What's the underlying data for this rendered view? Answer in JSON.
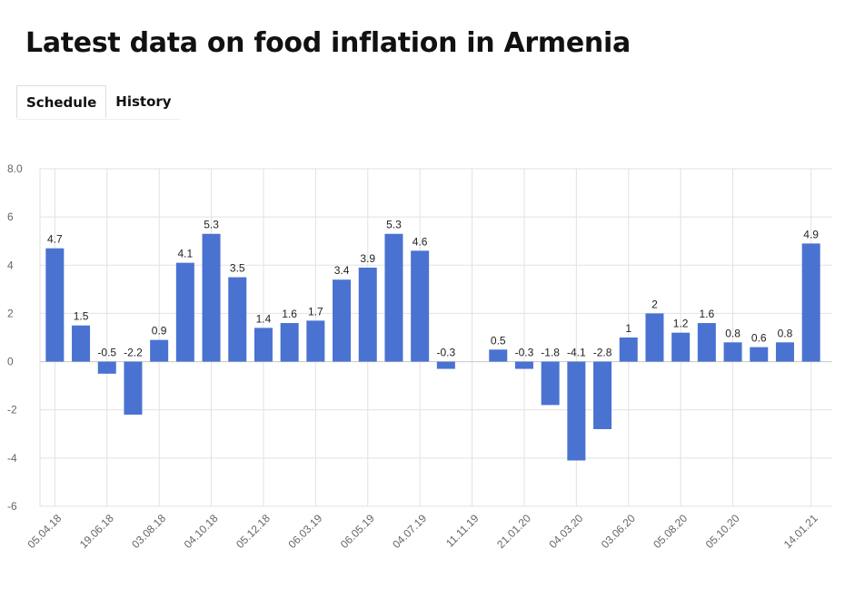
{
  "page": {
    "title": "Latest data on food inflation in Armenia",
    "tabs": [
      {
        "label": "Schedule",
        "active": true
      },
      {
        "label": "History",
        "active": false
      }
    ]
  },
  "colors": {
    "bar": "#4a72d1",
    "grid": "#e2e2e2",
    "axis_text": "#666666"
  },
  "chart_data": {
    "type": "bar",
    "title": "",
    "xlabel": "",
    "ylabel": "",
    "ylim": [
      -6,
      8
    ],
    "yticks": [
      "8.0",
      "6",
      "4",
      "2",
      "0",
      "-2",
      "-4",
      "-6"
    ],
    "grid": true,
    "values": [
      4.7,
      1.5,
      -0.5,
      -2.2,
      0.9,
      4.1,
      5.3,
      3.5,
      1.4,
      1.6,
      1.7,
      3.4,
      3.9,
      5.3,
      4.6,
      -0.3,
      null,
      0.5,
      -0.3,
      -1.8,
      -4.1,
      -2.8,
      1,
      2,
      1.2,
      1.6,
      0.8,
      0.6,
      0.8,
      4.9
    ],
    "value_labels": [
      "4.7",
      "1.5",
      "-0.5",
      "-2.2",
      "0.9",
      "4.1",
      "5.3",
      "3.5",
      "1.4",
      "1.6",
      "1.7",
      "3.4",
      "3.9",
      "5.3",
      "4.6",
      "-0.3",
      "",
      "0.5",
      "-0.3",
      "-1.8",
      "-4.1",
      "-2.8",
      "1",
      "2",
      "1.2",
      "1.6",
      "0.8",
      "0.6",
      "0.8",
      "4.9"
    ],
    "x_tick_labels": [
      {
        "label": "05.04.18",
        "slot": 0
      },
      {
        "label": "19.06.18",
        "slot": 2
      },
      {
        "label": "03.08.18",
        "slot": 4
      },
      {
        "label": "04.10.18",
        "slot": 6
      },
      {
        "label": "05.12.18",
        "slot": 8
      },
      {
        "label": "06.03.19",
        "slot": 10
      },
      {
        "label": "06.05.19",
        "slot": 12
      },
      {
        "label": "04.07.19",
        "slot": 14
      },
      {
        "label": "11.11.19",
        "slot": 16
      },
      {
        "label": "21.01.20",
        "slot": 18
      },
      {
        "label": "04.03.20",
        "slot": 20
      },
      {
        "label": "03.06.20",
        "slot": 22
      },
      {
        "label": "05.08.20",
        "slot": 24
      },
      {
        "label": "05.10.20",
        "slot": 26
      },
      {
        "label": "14.01.21",
        "slot": 29
      }
    ]
  }
}
